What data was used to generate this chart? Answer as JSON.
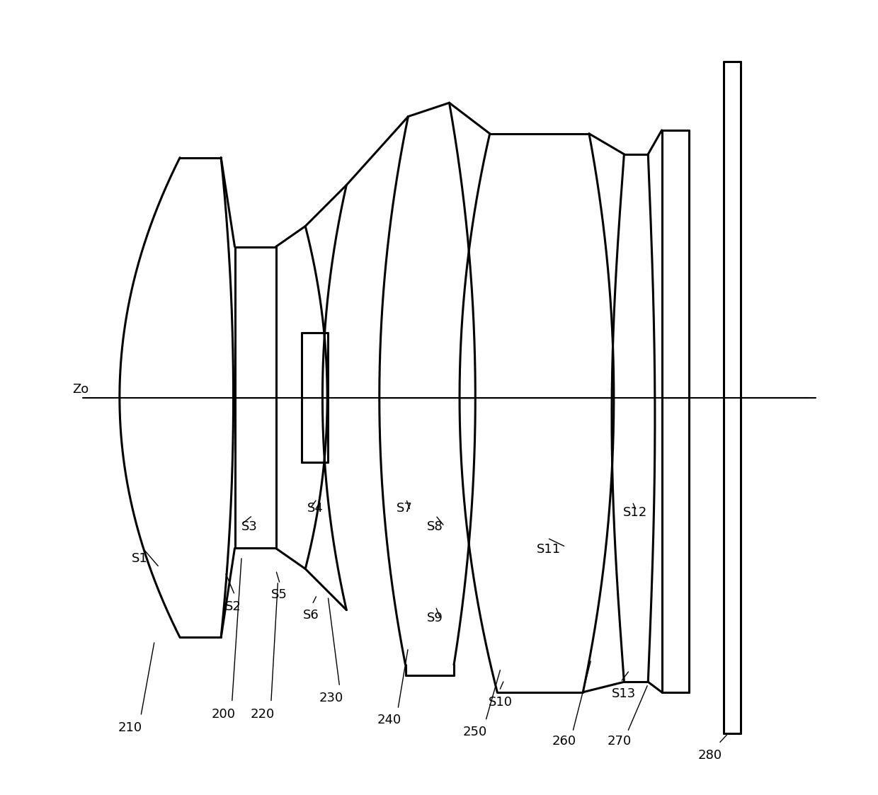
{
  "background": "#ffffff",
  "line_color": "#000000",
  "line_width": 2.2,
  "figsize": [
    12.4,
    11.23
  ],
  "dpi": 100,
  "xlim": [
    -0.5,
    11.5
  ],
  "ylim": [
    -5.8,
    5.8
  ]
}
